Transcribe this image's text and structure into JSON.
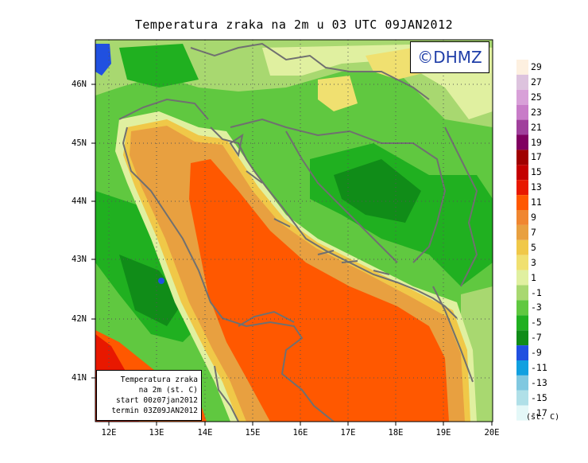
{
  "title": "Temperatura zraka na 2m u 03 UTC 09JAN2012",
  "logo": "©DHMZ",
  "info_box": {
    "line1": "Temperatura zraka",
    "line2": "na 2m (st. C)",
    "line3": "start 00z07jan2012",
    "line4": "termin 03Z09JAN2012"
  },
  "lat_labels": [
    "46N",
    "45N",
    "44N",
    "43N",
    "42N",
    "41N"
  ],
  "lon_labels": [
    "12E",
    "13E",
    "14E",
    "15E",
    "16E",
    "17E",
    "18E",
    "19E",
    "20E"
  ],
  "colorbar": {
    "labels": [
      "29",
      "27",
      "25",
      "23",
      "21",
      "19",
      "17",
      "15",
      "13",
      "11",
      "9",
      "7",
      "5",
      "3",
      "1",
      "-1",
      "-3",
      "-5",
      "-7",
      "-9",
      "-11",
      "-13",
      "-15",
      "-17"
    ],
    "unit": "(st. C)",
    "colors": [
      "#fdf0e0",
      "#ddc3de",
      "#d8a0d8",
      "#c87cc8",
      "#a0409c",
      "#800060",
      "#a00000",
      "#c40000",
      "#e81800",
      "#ff5800",
      "#f08630",
      "#e8a040",
      "#f0c848",
      "#f0e070",
      "#e0f0a0",
      "#a8d870",
      "#60c840",
      "#20b020",
      "#108c18",
      "#2050e0",
      "#10a0e0",
      "#80c8e0",
      "#b0e0e8",
      "#e4f8f8"
    ]
  }
}
